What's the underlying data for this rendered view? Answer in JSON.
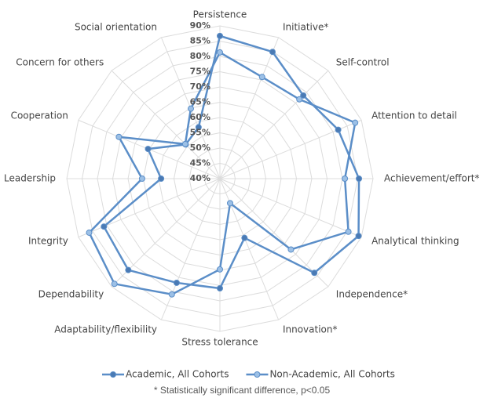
{
  "chart_data": {
    "type": "radar",
    "categories": [
      "Persistence",
      "Initiative*",
      "Self-control",
      "Attention to detail",
      "Achievement/effort*",
      "Analytical thinking",
      "Independence*",
      "Innovation*",
      "Stress tolerance",
      "Adaptability/flexibility",
      "Dependability",
      "Integrity",
      "Leadership",
      "Cooperation",
      "Concern for others",
      "Social orientation"
    ],
    "series": [
      {
        "name": "Academic, All Cohorts",
        "color": "#5b8ec8",
        "marker_color": "#4a7ab4",
        "values": [
          86.7,
          84.9,
          78.5,
          81.8,
          85.4,
          89,
          83.6,
          61,
          75.9,
          76.9,
          82.3,
          81,
          59.2,
          65.4,
          55.8,
          58.2
        ]
      },
      {
        "name": "Non-Academic, All Cohorts",
        "color": "#5b8ec8",
        "marker_color": "#9cc0e6",
        "values": [
          81.3,
          76,
          76.7,
          87.8,
          80.8,
          85.4,
          72.8,
          48.7,
          69.7,
          81,
          88.7,
          86.2,
          65.4,
          75.7,
          56,
          64.8
        ]
      }
    ],
    "rlim": [
      40,
      90
    ],
    "rticks": [
      {
        "value": 40,
        "label": "40%"
      },
      {
        "value": 45,
        "label": "45%"
      },
      {
        "value": 50,
        "label": "50%"
      },
      {
        "value": 55,
        "label": "55%"
      },
      {
        "value": 60,
        "label": "60%"
      },
      {
        "value": 65,
        "label": "65%"
      },
      {
        "value": 70,
        "label": "70%"
      },
      {
        "value": 75,
        "label": "75%"
      },
      {
        "value": 80,
        "label": "80%"
      },
      {
        "value": 85,
        "label": "85%"
      },
      {
        "value": 90,
        "label": "90%"
      }
    ],
    "grid": true,
    "legend": "bottom",
    "note": "* Statistically significant difference, p<0.05"
  }
}
